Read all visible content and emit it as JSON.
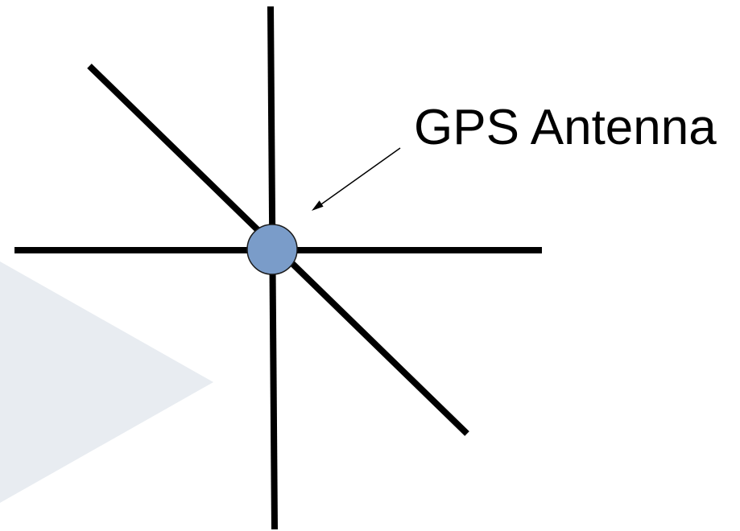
{
  "diagram": {
    "label": "GPS Antenna",
    "colors": {
      "background": "#ffffff",
      "lines": "#000000",
      "antenna_fill": "#7a9cc9",
      "antenna_stroke": "#1a1a1a",
      "watermark": "#e8ecf1"
    }
  }
}
